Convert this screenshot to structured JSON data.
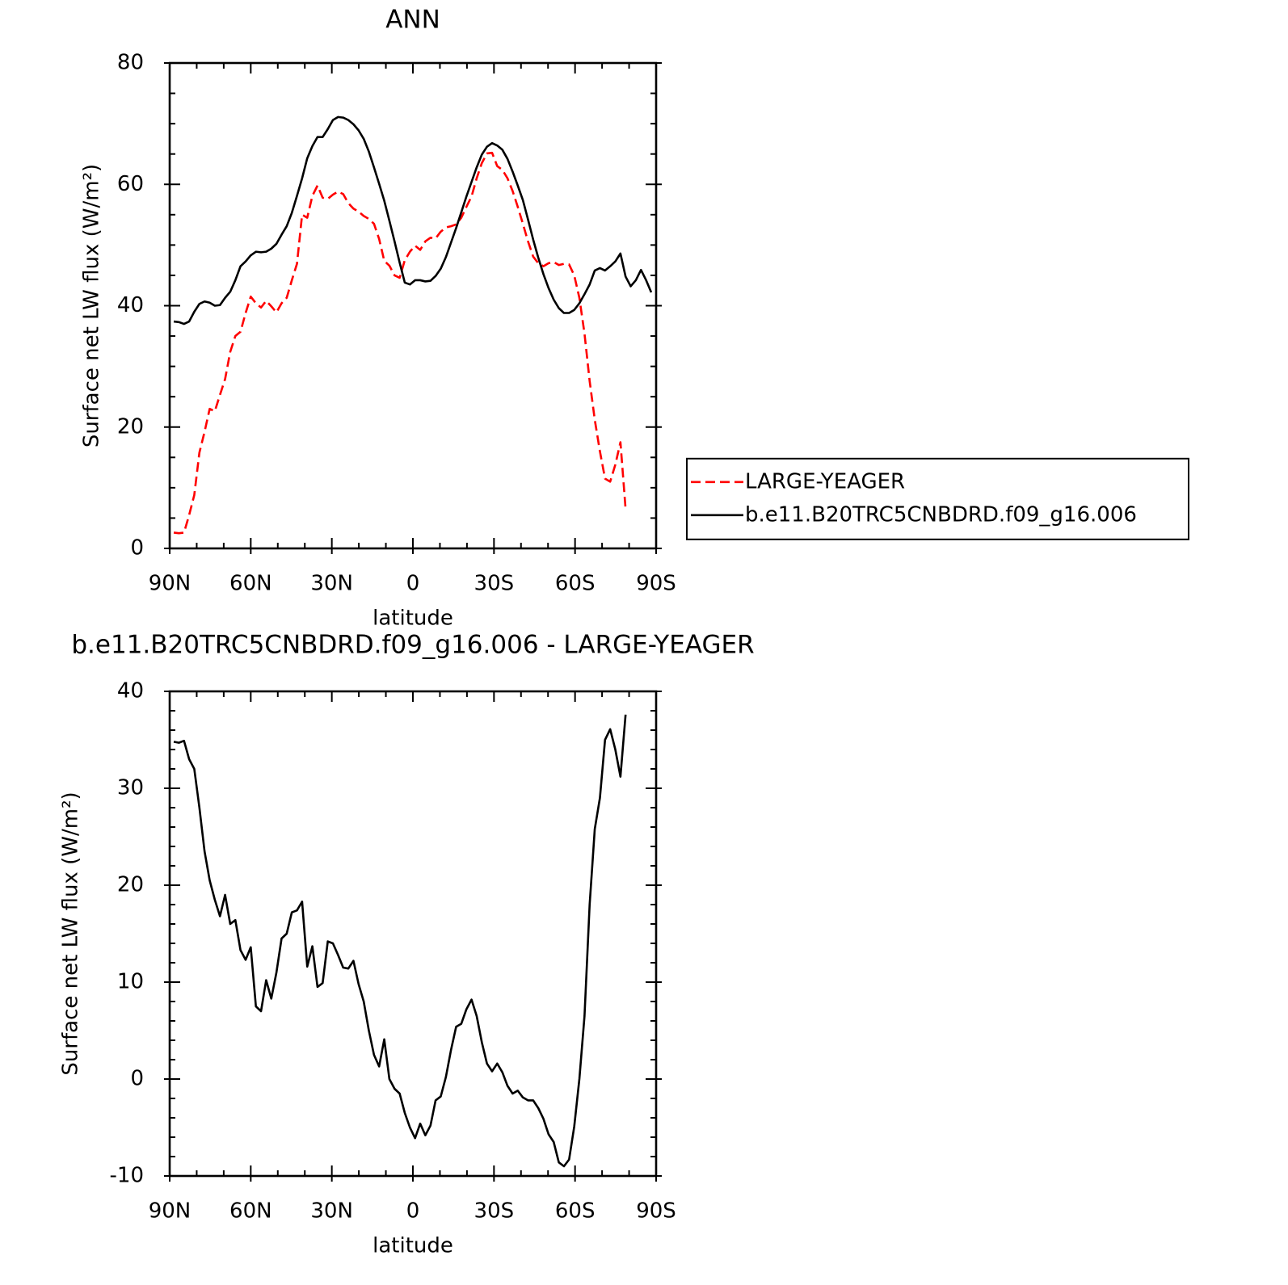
{
  "chart_data": [
    {
      "type": "line",
      "title": "ANN",
      "xlabel": "latitude",
      "ylabel": "Surface net LW flux (W/m²)",
      "x": [
        88.5,
        86.6,
        84.7,
        82.8,
        80.9,
        79.0,
        77.1,
        75.2,
        73.3,
        71.4,
        69.5,
        67.6,
        65.7,
        63.8,
        61.9,
        60.0,
        58.1,
        56.2,
        54.3,
        52.4,
        50.5,
        48.6,
        46.7,
        44.8,
        42.9,
        41.0,
        39.1,
        37.2,
        35.3,
        33.4,
        31.5,
        29.6,
        27.7,
        25.8,
        23.9,
        22.0,
        20.1,
        18.2,
        16.3,
        14.4,
        12.5,
        10.6,
        8.7,
        6.8,
        4.9,
        3.0,
        1.1,
        -0.8,
        -2.7,
        -4.6,
        -6.5,
        -8.4,
        -10.3,
        -12.2,
        -14.1,
        -16.0,
        -17.9,
        -19.8,
        -21.7,
        -23.6,
        -25.5,
        -27.4,
        -29.3,
        -31.2,
        -33.1,
        -35.0,
        -36.9,
        -38.8,
        -40.7,
        -42.6,
        -44.5,
        -46.4,
        -48.3,
        -50.2,
        -52.1,
        -54.0,
        -55.9,
        -57.8,
        -59.7,
        -61.6,
        -63.5,
        -65.4,
        -67.3,
        -69.2,
        -71.1,
        -73.0,
        -74.9,
        -76.8,
        -78.7,
        -80.6,
        -82.5,
        -84.4,
        -86.3,
        -88.2
      ],
      "series": [
        {
          "name": "LARGE-YEAGER",
          "color": "#ff0000",
          "dashed": true,
          "values": [
            2.6,
            2.5,
            2.6,
            5.5,
            8.8,
            15.8,
            19.2,
            23.0,
            22.6,
            25.3,
            27.9,
            32.4,
            35.0,
            35.7,
            38.8,
            41.5,
            40.4,
            39.7,
            40.8,
            39.9,
            38.9,
            40.4,
            41.3,
            44.2,
            46.9,
            55,
            54.5,
            58.1,
            59.8,
            57.8,
            57.6,
            58.3,
            58.8,
            58.4,
            56.9,
            56,
            55.5,
            54.8,
            54.3,
            53.5,
            51,
            47.4,
            46.6,
            45,
            44.6,
            47.5,
            48.9,
            49.9,
            49.2,
            50.6,
            51.2,
            51.1,
            52.2,
            52.9,
            53.1,
            53.4,
            54.5,
            56.3,
            58,
            61,
            63.5,
            65.1,
            65.2,
            63,
            62.4,
            61,
            58.9,
            56.3,
            53.5,
            50.6,
            48.1,
            47,
            46.5,
            47,
            47.2,
            46.7,
            46.9,
            46.8,
            45,
            41.3,
            35.4,
            27.6,
            21.2,
            16,
            11.5,
            11,
            13.8,
            17.5,
            6.5,
            null,
            null,
            null,
            null,
            null
          ]
        },
        {
          "name": "b.e11.B20TRC5CNBDRD.f09_g16.006",
          "color": "#000000",
          "dashed": false,
          "values": [
            37.4,
            37.3,
            37.0,
            37.4,
            39.0,
            40.3,
            40.7,
            40.5,
            40.0,
            40.1,
            41.3,
            42.3,
            44.2,
            46.5,
            47.3,
            48.3,
            48.9,
            48.8,
            48.9,
            49.4,
            50.2,
            51.7,
            53.1,
            55.3,
            58.1,
            61,
            64.3,
            66.3,
            67.8,
            67.8,
            69.1,
            70.6,
            71.1,
            71.0,
            70.6,
            69.9,
            68.9,
            67.5,
            65.4,
            62.8,
            60.1,
            57.3,
            54,
            50.6,
            47.1,
            43.8,
            43.5,
            44.2,
            44.2,
            44.0,
            44.1,
            44.9,
            46.1,
            48.0,
            50.4,
            52.8,
            55.4,
            58.0,
            60.4,
            62.8,
            64.9,
            66.2,
            66.8,
            66.4,
            65.7,
            64.2,
            62.1,
            59.8,
            57.4,
            54.2,
            50.9,
            47.9,
            45.2,
            42.9,
            41.0,
            39.6,
            38.8,
            38.8,
            39.3,
            40.4,
            41.9,
            43.5,
            45.8,
            46.2,
            45.8,
            46.5,
            47.3,
            48.6,
            44.8,
            43.2,
            44.2,
            45.9,
            44.2,
            42.2
          ]
        }
      ],
      "xlim": [
        90,
        -90
      ],
      "xticks": [
        {
          "value": 90,
          "label": "90N"
        },
        {
          "value": 60,
          "label": "60N"
        },
        {
          "value": 30,
          "label": "30N"
        },
        0,
        {
          "value": -30,
          "label": "30S"
        },
        {
          "value": -60,
          "label": "60S"
        },
        {
          "value": -90,
          "label": "90S"
        }
      ],
      "ylim": [
        0,
        80
      ],
      "yticks": [
        0,
        20,
        40,
        60,
        80
      ],
      "legend": "right"
    },
    {
      "type": "line",
      "title": "b.e11.B20TRC5CNBDRD.f09_g16.006 - LARGE-YEAGER",
      "xlabel": "latitude",
      "ylabel": "Surface net LW flux (W/m²)",
      "x": [
        88.5,
        86.6,
        84.7,
        82.8,
        80.9,
        79.0,
        77.1,
        75.2,
        73.3,
        71.4,
        69.5,
        67.6,
        65.7,
        63.8,
        61.9,
        60.0,
        58.1,
        56.2,
        54.3,
        52.4,
        50.5,
        48.6,
        46.7,
        44.8,
        42.9,
        41.0,
        39.1,
        37.2,
        35.3,
        33.4,
        31.5,
        29.6,
        27.7,
        25.8,
        23.9,
        22.0,
        20.1,
        18.2,
        16.3,
        14.4,
        12.5,
        10.6,
        8.7,
        6.8,
        4.9,
        3.0,
        1.1,
        -0.8,
        -2.7,
        -4.6,
        -6.5,
        -8.4,
        -10.3,
        -12.2,
        -14.1,
        -16.0,
        -17.9,
        -19.8,
        -21.7,
        -23.6,
        -25.5,
        -27.4,
        -29.3,
        -31.2,
        -33.1,
        -35.0,
        -36.9,
        -38.8,
        -40.7,
        -42.6,
        -44.5,
        -46.4,
        -48.3,
        -50.2,
        -52.1,
        -54.0,
        -55.9,
        -57.8,
        -59.7,
        -61.6,
        -63.5,
        -65.4,
        -67.3,
        -69.2,
        -71.1,
        -73.0,
        -74.9,
        -76.8,
        -78.7
      ],
      "values": [
        34.8,
        34.7,
        34.9,
        33,
        32,
        28,
        23.5,
        20.5,
        18.5,
        16.8,
        19,
        16,
        16.4,
        13.3,
        12.3,
        13.6,
        7.5,
        7,
        10.2,
        8.3,
        11,
        14.5,
        15,
        17.2,
        17.4,
        18.3,
        11.6,
        13.7,
        9.5,
        9.9,
        14.2,
        14,
        12.8,
        11.5,
        11.4,
        12.2,
        9.8,
        8,
        5,
        2.5,
        1.3,
        4.1,
        0,
        -1,
        -1.5,
        -3.5,
        -5,
        -6.1,
        -4.6,
        -5.8,
        -4.8,
        -2.2,
        -1.8,
        0.2,
        3,
        5.4,
        5.7,
        7.2,
        8.2,
        6.5,
        3.8,
        1.6,
        0.8,
        1.6,
        0.7,
        -0.7,
        -1.5,
        -1.2,
        -1.9,
        -2.2,
        -2.2,
        -3,
        -4.1,
        -5.7,
        -6.5,
        -8.6,
        -9,
        -8.3,
        -4.9,
        0,
        6.5,
        18,
        25.8,
        29,
        35,
        36.1,
        34,
        31.2,
        37.6
      ],
      "color": "#000000",
      "xlim": [
        90,
        -90
      ],
      "xticks": [
        {
          "value": 90,
          "label": "90N"
        },
        {
          "value": 60,
          "label": "60N"
        },
        {
          "value": 30,
          "label": "30N"
        },
        0,
        {
          "value": -30,
          "label": "30S"
        },
        {
          "value": -60,
          "label": "60S"
        },
        {
          "value": -90,
          "label": "90S"
        }
      ],
      "ylim": [
        -10,
        40
      ],
      "yticks": [
        -10,
        0,
        10,
        20,
        30,
        40
      ]
    }
  ]
}
